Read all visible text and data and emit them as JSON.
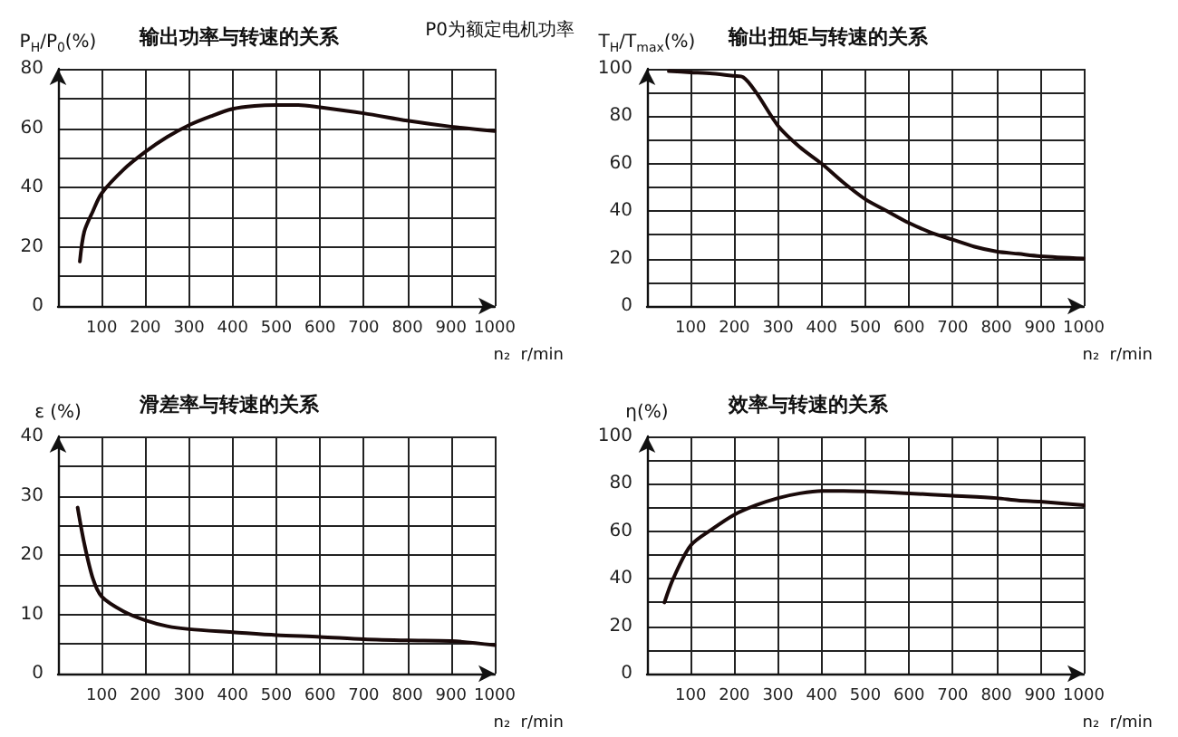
{
  "chart_data": [
    {
      "type": "line",
      "title": "输出功率与转速的关系",
      "ylabel": "P$_{H}$/P$_{0}$(%)",
      "xlabel": "n₂  r/min",
      "annotations": [
        "P0为额定电机功率"
      ],
      "x": [
        50,
        60,
        80,
        100,
        150,
        200,
        250,
        300,
        350,
        400,
        450,
        500,
        550,
        600,
        700,
        800,
        900,
        1000
      ],
      "series": [
        {
          "color": "#1a0a0a",
          "values": [
            15,
            25,
            32,
            38,
            46,
            52,
            57,
            61,
            64,
            66.5,
            67.5,
            67.8,
            67.8,
            67,
            65,
            62.5,
            60.5,
            59
          ]
        }
      ],
      "xlim": [
        0,
        1000
      ],
      "xticks": [
        100,
        200,
        300,
        400,
        500,
        600,
        700,
        800,
        900,
        1000
      ],
      "ylim": [
        0,
        80
      ],
      "yticks": [
        0,
        {
          "value": 10,
          "label": null
        },
        20,
        {
          "value": 30,
          "label": null
        },
        40,
        {
          "value": 50,
          "label": null
        },
        60,
        {
          "value": 70,
          "label": null
        },
        80
      ],
      "grid": true,
      "marker": "none",
      "line_style": "solid"
    },
    {
      "type": "line",
      "title": "输出扭矩与转速的关系",
      "ylabel": "T$_{H}$/T$_{max}$(%)",
      "xlabel": "n₂  r/min",
      "x": [
        50,
        100,
        150,
        200,
        220,
        250,
        300,
        350,
        400,
        450,
        500,
        550,
        600,
        650,
        700,
        750,
        800,
        850,
        900,
        1000
      ],
      "series": [
        {
          "color": "#1a0a0a",
          "values": [
            99,
            98.5,
            98,
            97,
            96.5,
            90,
            76,
            67,
            60,
            52,
            45,
            40,
            35,
            31,
            28,
            25,
            23,
            22,
            21,
            20
          ]
        }
      ],
      "xlim": [
        0,
        1000
      ],
      "xticks": [
        100,
        200,
        300,
        400,
        500,
        600,
        700,
        800,
        900,
        1000
      ],
      "ylim": [
        0,
        100
      ],
      "yticks": [
        0,
        {
          "value": 10,
          "label": null
        },
        20,
        {
          "value": 30,
          "label": null
        },
        40,
        {
          "value": 50,
          "label": null
        },
        60,
        {
          "value": 70,
          "label": null
        },
        80,
        {
          "value": 90,
          "label": null
        },
        100
      ],
      "grid": true,
      "marker": "none",
      "line_style": "solid"
    },
    {
      "type": "line",
      "title": "滑差率与转速的关系",
      "ylabel": "ε (%)",
      "xlabel": "n₂  r/min",
      "x": [
        45,
        60,
        80,
        100,
        150,
        200,
        250,
        300,
        400,
        500,
        600,
        700,
        800,
        900,
        1000
      ],
      "series": [
        {
          "color": "#1a0a0a",
          "values": [
            28,
            22,
            16,
            13,
            10.5,
            9,
            8,
            7.5,
            7,
            6.5,
            6.2,
            5.8,
            5.6,
            5.5,
            4.8
          ]
        }
      ],
      "xlim": [
        0,
        1000
      ],
      "xticks": [
        100,
        200,
        300,
        400,
        500,
        600,
        700,
        800,
        900,
        1000
      ],
      "ylim": [
        0,
        40
      ],
      "yticks": [
        0,
        {
          "value": 5,
          "label": null
        },
        10,
        {
          "value": 15,
          "label": null
        },
        20,
        {
          "value": 25,
          "label": null
        },
        30,
        {
          "value": 35,
          "label": null
        },
        40
      ],
      "grid": true,
      "marker": "none",
      "line_style": "solid"
    },
    {
      "type": "line",
      "title": "效率与转速的关系",
      "ylabel": "η(%)",
      "xlabel": "n₂  r/min",
      "x": [
        40,
        60,
        100,
        150,
        200,
        250,
        300,
        350,
        400,
        450,
        500,
        600,
        700,
        800,
        850,
        900,
        1000
      ],
      "series": [
        {
          "color": "#1a0a0a",
          "values": [
            30,
            40,
            54,
            61,
            67,
            71,
            74,
            76,
            77,
            77,
            76.8,
            76,
            75,
            74,
            73,
            72.5,
            71
          ]
        }
      ],
      "xlim": [
        0,
        1000
      ],
      "xticks": [
        100,
        200,
        300,
        400,
        500,
        600,
        700,
        800,
        900,
        1000
      ],
      "ylim": [
        0,
        100
      ],
      "yticks": [
        0,
        {
          "value": 10,
          "label": null
        },
        20,
        {
          "value": 30,
          "label": null
        },
        40,
        {
          "value": 50,
          "label": null
        },
        60,
        {
          "value": 70,
          "label": null
        },
        80,
        {
          "value": 90,
          "label": null
        },
        100
      ],
      "grid": true,
      "marker": "none",
      "line_style": "solid"
    }
  ]
}
